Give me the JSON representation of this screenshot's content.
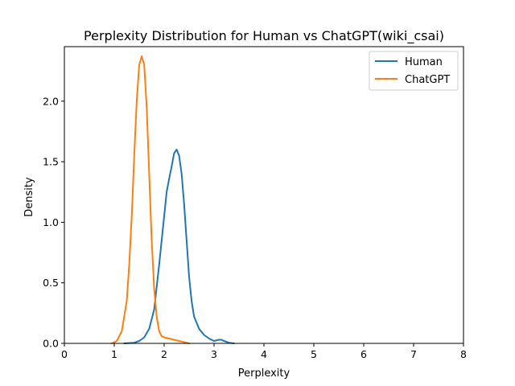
{
  "chart_data": {
    "type": "line",
    "title": "Perplexity Distribution for Human vs ChatGPT(wiki_csai)",
    "xlabel": "Perplexity",
    "ylabel": "Density",
    "xlim": [
      0,
      8
    ],
    "ylim": [
      0,
      2.45
    ],
    "xticks": [
      "0",
      "1",
      "2",
      "3",
      "4",
      "5",
      "6",
      "7",
      "8"
    ],
    "yticks": [
      "0.0",
      "0.5",
      "1.0",
      "1.5",
      "2.0"
    ],
    "grid": false,
    "legend_position": "top-right",
    "series": [
      {
        "name": "Human",
        "color": "#1f77b4",
        "x": [
          1.2,
          1.4,
          1.5,
          1.6,
          1.7,
          1.8,
          1.9,
          2.0,
          2.05,
          2.1,
          2.15,
          2.2,
          2.25,
          2.3,
          2.35,
          2.4,
          2.45,
          2.5,
          2.55,
          2.6,
          2.7,
          2.8,
          2.9,
          3.0,
          3.1,
          3.15,
          3.2,
          3.3,
          3.4
        ],
        "y": [
          0.0,
          0.005,
          0.02,
          0.05,
          0.12,
          0.28,
          0.65,
          1.05,
          1.25,
          1.36,
          1.46,
          1.57,
          1.6,
          1.55,
          1.4,
          1.15,
          0.85,
          0.55,
          0.35,
          0.22,
          0.12,
          0.07,
          0.04,
          0.02,
          0.03,
          0.03,
          0.02,
          0.005,
          0.0
        ]
      },
      {
        "name": "ChatGPT",
        "color": "#ff7f0e",
        "x": [
          0.95,
          1.05,
          1.15,
          1.25,
          1.3,
          1.35,
          1.4,
          1.45,
          1.5,
          1.55,
          1.6,
          1.65,
          1.7,
          1.75,
          1.8,
          1.85,
          1.9,
          1.95,
          2.0,
          2.1,
          2.2,
          2.3,
          2.4,
          2.5
        ],
        "y": [
          0.0,
          0.02,
          0.1,
          0.35,
          0.65,
          1.05,
          1.55,
          2.0,
          2.3,
          2.37,
          2.3,
          1.95,
          1.4,
          0.85,
          0.45,
          0.22,
          0.1,
          0.06,
          0.05,
          0.04,
          0.03,
          0.02,
          0.01,
          0.0
        ]
      }
    ]
  }
}
